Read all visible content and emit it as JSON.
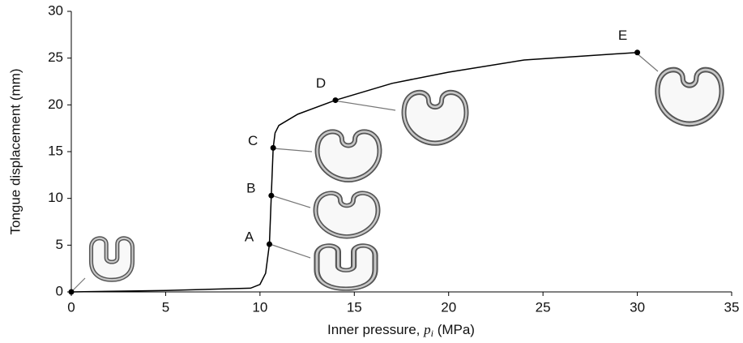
{
  "chart_data": {
    "type": "line",
    "ylabel": "Tongue displacement  (mm)",
    "xlabel": {
      "text": "Inner pressure,",
      "symbol": "p",
      "subscript": "i",
      "unit": "(MPa)"
    },
    "x": [
      0,
      5,
      9.5,
      10,
      10.3,
      10.5,
      10.6,
      10.7,
      10.8,
      11,
      12,
      14,
      17,
      20,
      24,
      30
    ],
    "series": [
      {
        "color": "#000000",
        "values": [
          0,
          0.15,
          0.4,
          0.8,
          2,
          5.1,
          10.3,
          15.4,
          17,
          17.8,
          19,
          20.5,
          22.3,
          23.5,
          24.8,
          25.6
        ]
      }
    ],
    "annotations": [
      {
        "label": "A",
        "x": 10.5,
        "y": 5.1
      },
      {
        "label": "B",
        "x": 10.6,
        "y": 10.3
      },
      {
        "label": "C",
        "x": 10.7,
        "y": 15.4
      },
      {
        "label": "D",
        "x": 14,
        "y": 20.5
      },
      {
        "label": "E",
        "x": 30,
        "y": 25.6
      }
    ],
    "origin_point": {
      "x": 0,
      "y": 0
    },
    "xlim": [
      0,
      35
    ],
    "xticks": [
      0,
      5,
      10,
      15,
      20,
      25,
      30,
      35
    ],
    "ylim": [
      0,
      30
    ],
    "yticks": [
      0,
      5,
      10,
      15,
      20,
      25,
      30
    ]
  }
}
